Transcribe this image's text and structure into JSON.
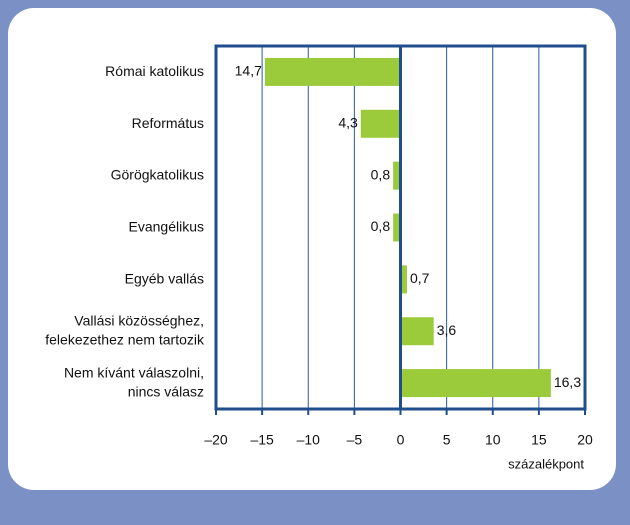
{
  "chart_data": {
    "type": "bar",
    "orientation": "horizontal",
    "categories": [
      "Római katolikus",
      "Református",
      "Görögkatolikus",
      "Evangélikus",
      "Egyéb vallás",
      "Vallási közösséghez,\nfelekezethez nem tartozik",
      "Nem kívánt válaszolni,\nnincs válasz"
    ],
    "values": [
      -14.7,
      -4.3,
      -0.8,
      -0.8,
      0.7,
      3.6,
      16.3
    ],
    "value_labels": [
      "14,7",
      "4,3",
      "0,8",
      "0,8",
      "0,7",
      "3,6",
      "16,3"
    ],
    "color": "#9bcb3b",
    "xlabel": "százalékpont",
    "xlim": [
      -20,
      20
    ],
    "xticks": [
      {
        "value": -20,
        "label": "–20"
      },
      {
        "value": -15,
        "label": "–15"
      },
      {
        "value": -10,
        "label": "–10"
      },
      {
        "value": -5,
        "label": "–5"
      },
      0,
      5,
      10,
      15,
      20
    ],
    "grid": true
  }
}
